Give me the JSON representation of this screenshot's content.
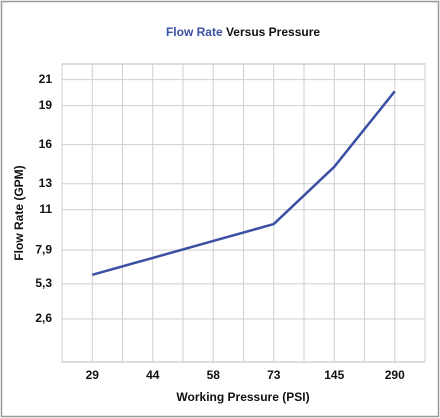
{
  "chart_data": {
    "type": "line",
    "title": [
      "Flow Rate",
      "Versus Pressure"
    ],
    "title_colors": [
      "#3b4fa3",
      "#111111"
    ],
    "x_label": "Working Pressure (PSI)",
    "y_label": "Flow Rate (GPM)",
    "categories": [
      "29",
      "44",
      "58",
      "73",
      "145",
      "290"
    ],
    "series": [
      {
        "name": "Flow Rate",
        "color": "#3b4fa3",
        "values": [
          6.0,
          7.3,
          8.6,
          9.9,
          14.3,
          20.1
        ]
      }
    ],
    "ylim": [
      -0.7,
      22.2
    ],
    "yticks": [
      {
        "value": 2.6,
        "label": "2,6"
      },
      {
        "value": 5.3,
        "label": "5,3"
      },
      {
        "value": 7.9,
        "label": "7,9"
      },
      11,
      13,
      16,
      19,
      21
    ],
    "grid": true
  }
}
